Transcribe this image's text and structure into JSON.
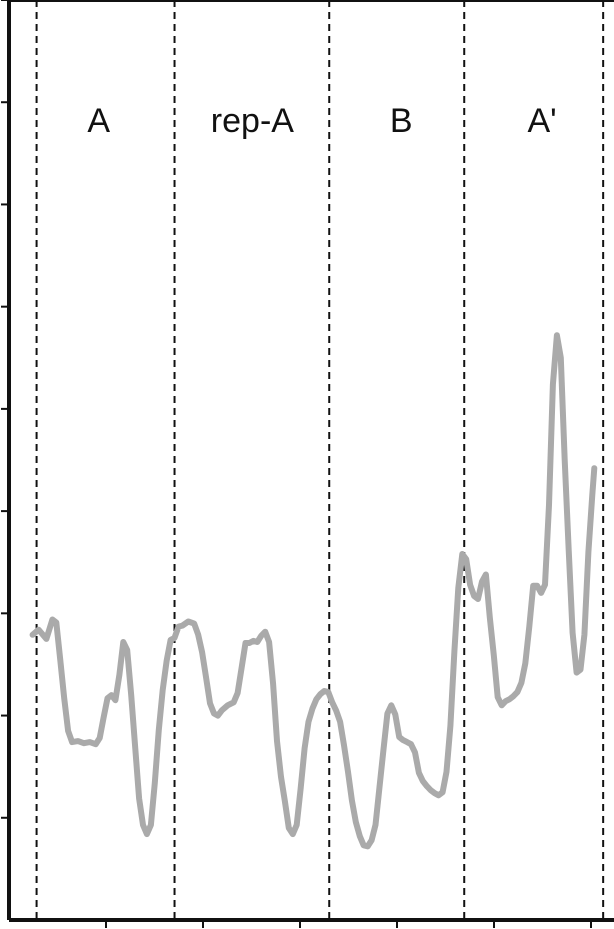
{
  "chart_data": {
    "type": "line",
    "title": "",
    "xlabel": "",
    "ylabel": "",
    "grid": false,
    "xlim": [
      0,
      614
    ],
    "ylim": [
      0,
      9
    ],
    "section_boundaries": [
      28,
      168,
      325,
      462,
      603
    ],
    "sections": [
      {
        "label": "A",
        "x": 91
      },
      {
        "label": "rep-A",
        "x": 247
      },
      {
        "label": "B",
        "x": 398
      },
      {
        "label": "A'",
        "x": 541
      }
    ],
    "series": [
      {
        "color": "#aaaaaa",
        "x": [
          24,
          30,
          38,
          44,
          48,
          52,
          56,
          60,
          64,
          70,
          76,
          82,
          88,
          92,
          96,
          100,
          104,
          108,
          112,
          116,
          120,
          124,
          128,
          132,
          136,
          140,
          144,
          148,
          152,
          156,
          160,
          164,
          168,
          172,
          176,
          182,
          188,
          192,
          196,
          200,
          204,
          208,
          212,
          216,
          222,
          228,
          232,
          236,
          240,
          244,
          248,
          252,
          256,
          260,
          264,
          268,
          272,
          276,
          280,
          284,
          288,
          292,
          296,
          300,
          304,
          308,
          312,
          316,
          320,
          324,
          328,
          332,
          336,
          340,
          344,
          348,
          352,
          356,
          360,
          364,
          368,
          372,
          376,
          380,
          384,
          388,
          392,
          396,
          400,
          404,
          408,
          412,
          416,
          420,
          424,
          428,
          432,
          436,
          440,
          444,
          448,
          452,
          456,
          460,
          464,
          468,
          472,
          476,
          480,
          484,
          488,
          492,
          496,
          500,
          504,
          508,
          512,
          516,
          520,
          524,
          528,
          532,
          536,
          540,
          544,
          548,
          552,
          556,
          560,
          564,
          568,
          572,
          576,
          580,
          584,
          588,
          592,
          594
        ],
        "values": [
          2.79,
          2.84,
          2.75,
          2.94,
          2.91,
          2.55,
          2.17,
          1.85,
          1.74,
          1.75,
          1.73,
          1.74,
          1.72,
          1.78,
          1.98,
          2.17,
          2.2,
          2.15,
          2.4,
          2.72,
          2.64,
          2.2,
          1.7,
          1.19,
          0.93,
          0.84,
          0.93,
          1.34,
          1.86,
          2.25,
          2.54,
          2.74,
          2.76,
          2.87,
          2.88,
          2.92,
          2.9,
          2.79,
          2.62,
          2.37,
          2.12,
          2.02,
          2.0,
          2.05,
          2.1,
          2.13,
          2.22,
          2.46,
          2.71,
          2.71,
          2.73,
          2.72,
          2.78,
          2.82,
          2.72,
          2.31,
          1.75,
          1.4,
          1.16,
          0.9,
          0.84,
          0.93,
          1.29,
          1.68,
          1.94,
          2.07,
          2.16,
          2.21,
          2.24,
          2.23,
          2.13,
          2.05,
          1.94,
          1.71,
          1.45,
          1.17,
          0.96,
          0.82,
          0.73,
          0.72,
          0.78,
          0.93,
          1.3,
          1.66,
          2.02,
          2.1,
          2.01,
          1.79,
          1.76,
          1.74,
          1.72,
          1.64,
          1.44,
          1.36,
          1.31,
          1.27,
          1.24,
          1.22,
          1.25,
          1.45,
          1.9,
          2.63,
          3.25,
          3.58,
          3.53,
          3.28,
          3.17,
          3.14,
          3.31,
          3.38,
          2.96,
          2.59,
          2.18,
          2.1,
          2.14,
          2.16,
          2.19,
          2.23,
          2.32,
          2.51,
          2.87,
          3.27,
          3.27,
          3.2,
          3.28,
          4.06,
          5.24,
          5.72,
          5.5,
          4.5,
          3.62,
          2.81,
          2.42,
          2.45,
          2.79,
          3.6,
          4.16,
          4.42
        ]
      }
    ],
    "tick_count": 9
  }
}
